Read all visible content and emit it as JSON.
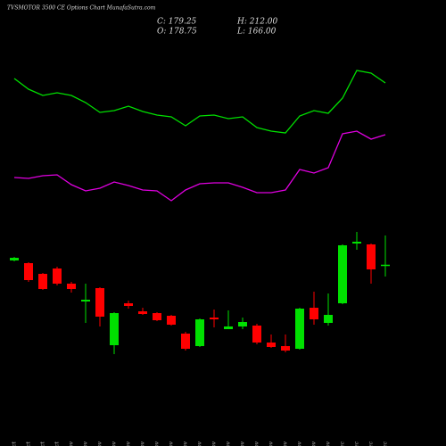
{
  "chart_data": {
    "type": "candlestick",
    "title": "TVSMOTOR 3500 CE Options Chart MunafaSutra.com",
    "ohlc_labels": [
      "C: 179.25",
      "H: 212.00",
      "O: 178.75",
      "L: 166.00"
    ],
    "categories": [
      "28 Oct",
      "29 Oct",
      "30 Oct",
      "31 Oct",
      "03 Nov",
      "04 Nov",
      "06 Nov",
      "07 Nov",
      "10 Nov",
      "11 Nov",
      "12 Nov",
      "13 Nov",
      "14 Nov",
      "17 Nov",
      "18 Nov",
      "19 Nov",
      "20 Nov",
      "21 Nov",
      "24 Nov",
      "25 Nov",
      "26 Nov",
      "27 Nov",
      "28 Nov",
      "01 Dec",
      "02 Dec",
      "03 Dec",
      "04 Dec"
    ],
    "open": [
      184,
      181,
      169,
      175,
      158,
      138,
      153,
      89,
      136,
      127,
      125,
      122,
      102,
      88,
      120,
      107,
      110,
      111,
      92,
      88,
      85,
      131,
      114,
      136,
      203,
      202,
      178.75
    ],
    "high": [
      188,
      182,
      170,
      177,
      160,
      158,
      154,
      126,
      139,
      131,
      126,
      123,
      104,
      119,
      129,
      128,
      120,
      113,
      101,
      101,
      131,
      149,
      147,
      202,
      216,
      203,
      212
    ],
    "low": [
      183,
      160,
      151,
      156,
      148,
      114,
      110,
      79,
      130,
      123,
      116,
      111,
      83,
      87,
      109,
      107,
      107,
      90,
      86,
      81,
      84,
      112,
      111,
      135,
      196,
      158,
      166
    ],
    "close": [
      187,
      162,
      152,
      158,
      152,
      140,
      121,
      125,
      133,
      124,
      117,
      112,
      85,
      118,
      118,
      110,
      115,
      92,
      87,
      83,
      130,
      118,
      123,
      201,
      205,
      174,
      179.25
    ],
    "up_color": "#00e000",
    "down_color": "#ff0000",
    "series": [
      {
        "color": "#00e000",
        "values": [
          388,
          376,
          369,
          372,
          369,
          361,
          350,
          352,
          357,
          351,
          347,
          345,
          335,
          346,
          347,
          343,
          345,
          333,
          329,
          327,
          346,
          352,
          349,
          366,
          397,
          394,
          383
        ]
      },
      {
        "color": "#e000e0",
        "values": [
          277,
          276,
          279,
          280,
          269,
          262,
          265,
          272,
          268,
          263,
          262,
          251,
          263,
          270,
          271,
          271,
          266,
          260,
          260,
          263,
          286,
          282,
          288,
          326,
          329,
          320,
          325
        ]
      }
    ],
    "ylim": [
      -24,
      476
    ]
  }
}
